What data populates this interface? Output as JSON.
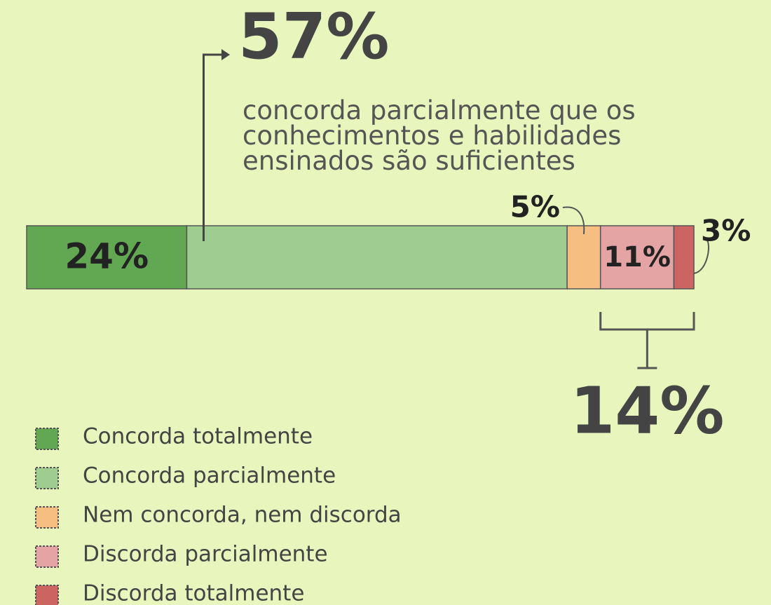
{
  "chart_data": {
    "type": "stacked-bar",
    "annotation": "concorda parcialmente que os conhecimentos e habilidades ensinados são suficientes",
    "xlim": [
      0,
      100
    ],
    "series": [
      {
        "name": "Concorda totalmente",
        "color": "#62a852",
        "values": [
          24
        ],
        "value_labels": [
          "24%"
        ]
      },
      {
        "name": "Concorda parcialmente",
        "color": "#9fcd8f",
        "values": [
          57
        ],
        "value_labels": [
          "57%"
        ]
      },
      {
        "name": "Nem concorda, nem discorda",
        "color": "#f6bf81",
        "values": [
          5
        ],
        "value_labels": [
          "5%"
        ]
      },
      {
        "name": "Discorda parcialmente",
        "color": "#e4a4a4",
        "values": [
          11
        ],
        "value_labels": [
          "11%"
        ]
      },
      {
        "name": "Discorda totalmente",
        "color": "#cc6461",
        "values": [
          3
        ],
        "value_labels": [
          "3%"
        ]
      }
    ],
    "callouts": [
      {
        "value": 14,
        "label": "14%"
      }
    ]
  }
}
